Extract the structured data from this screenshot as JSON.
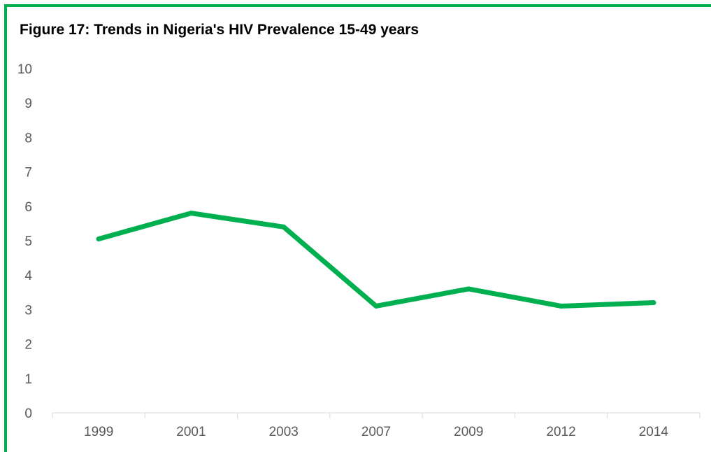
{
  "chart_data": {
    "type": "line",
    "title": "Figure 17: Trends in Nigeria's HIV Prevalence 15-49 years",
    "xlabel": "",
    "ylabel": "",
    "categories": [
      "1999",
      "2001",
      "2003",
      "2007",
      "2009",
      "2012",
      "2014"
    ],
    "series": [
      {
        "values": [
          5.05,
          5.8,
          5.4,
          3.1,
          3.6,
          3.1,
          3.2
        ]
      }
    ],
    "ylim": [
      0,
      10
    ],
    "yticks": [
      "0",
      "1",
      "2",
      "3",
      "4",
      "5",
      "6",
      "7",
      "8",
      "9",
      "10"
    ],
    "grid": false,
    "legend": "none",
    "line_color": "#00b050",
    "frame_color": "#00b050"
  }
}
